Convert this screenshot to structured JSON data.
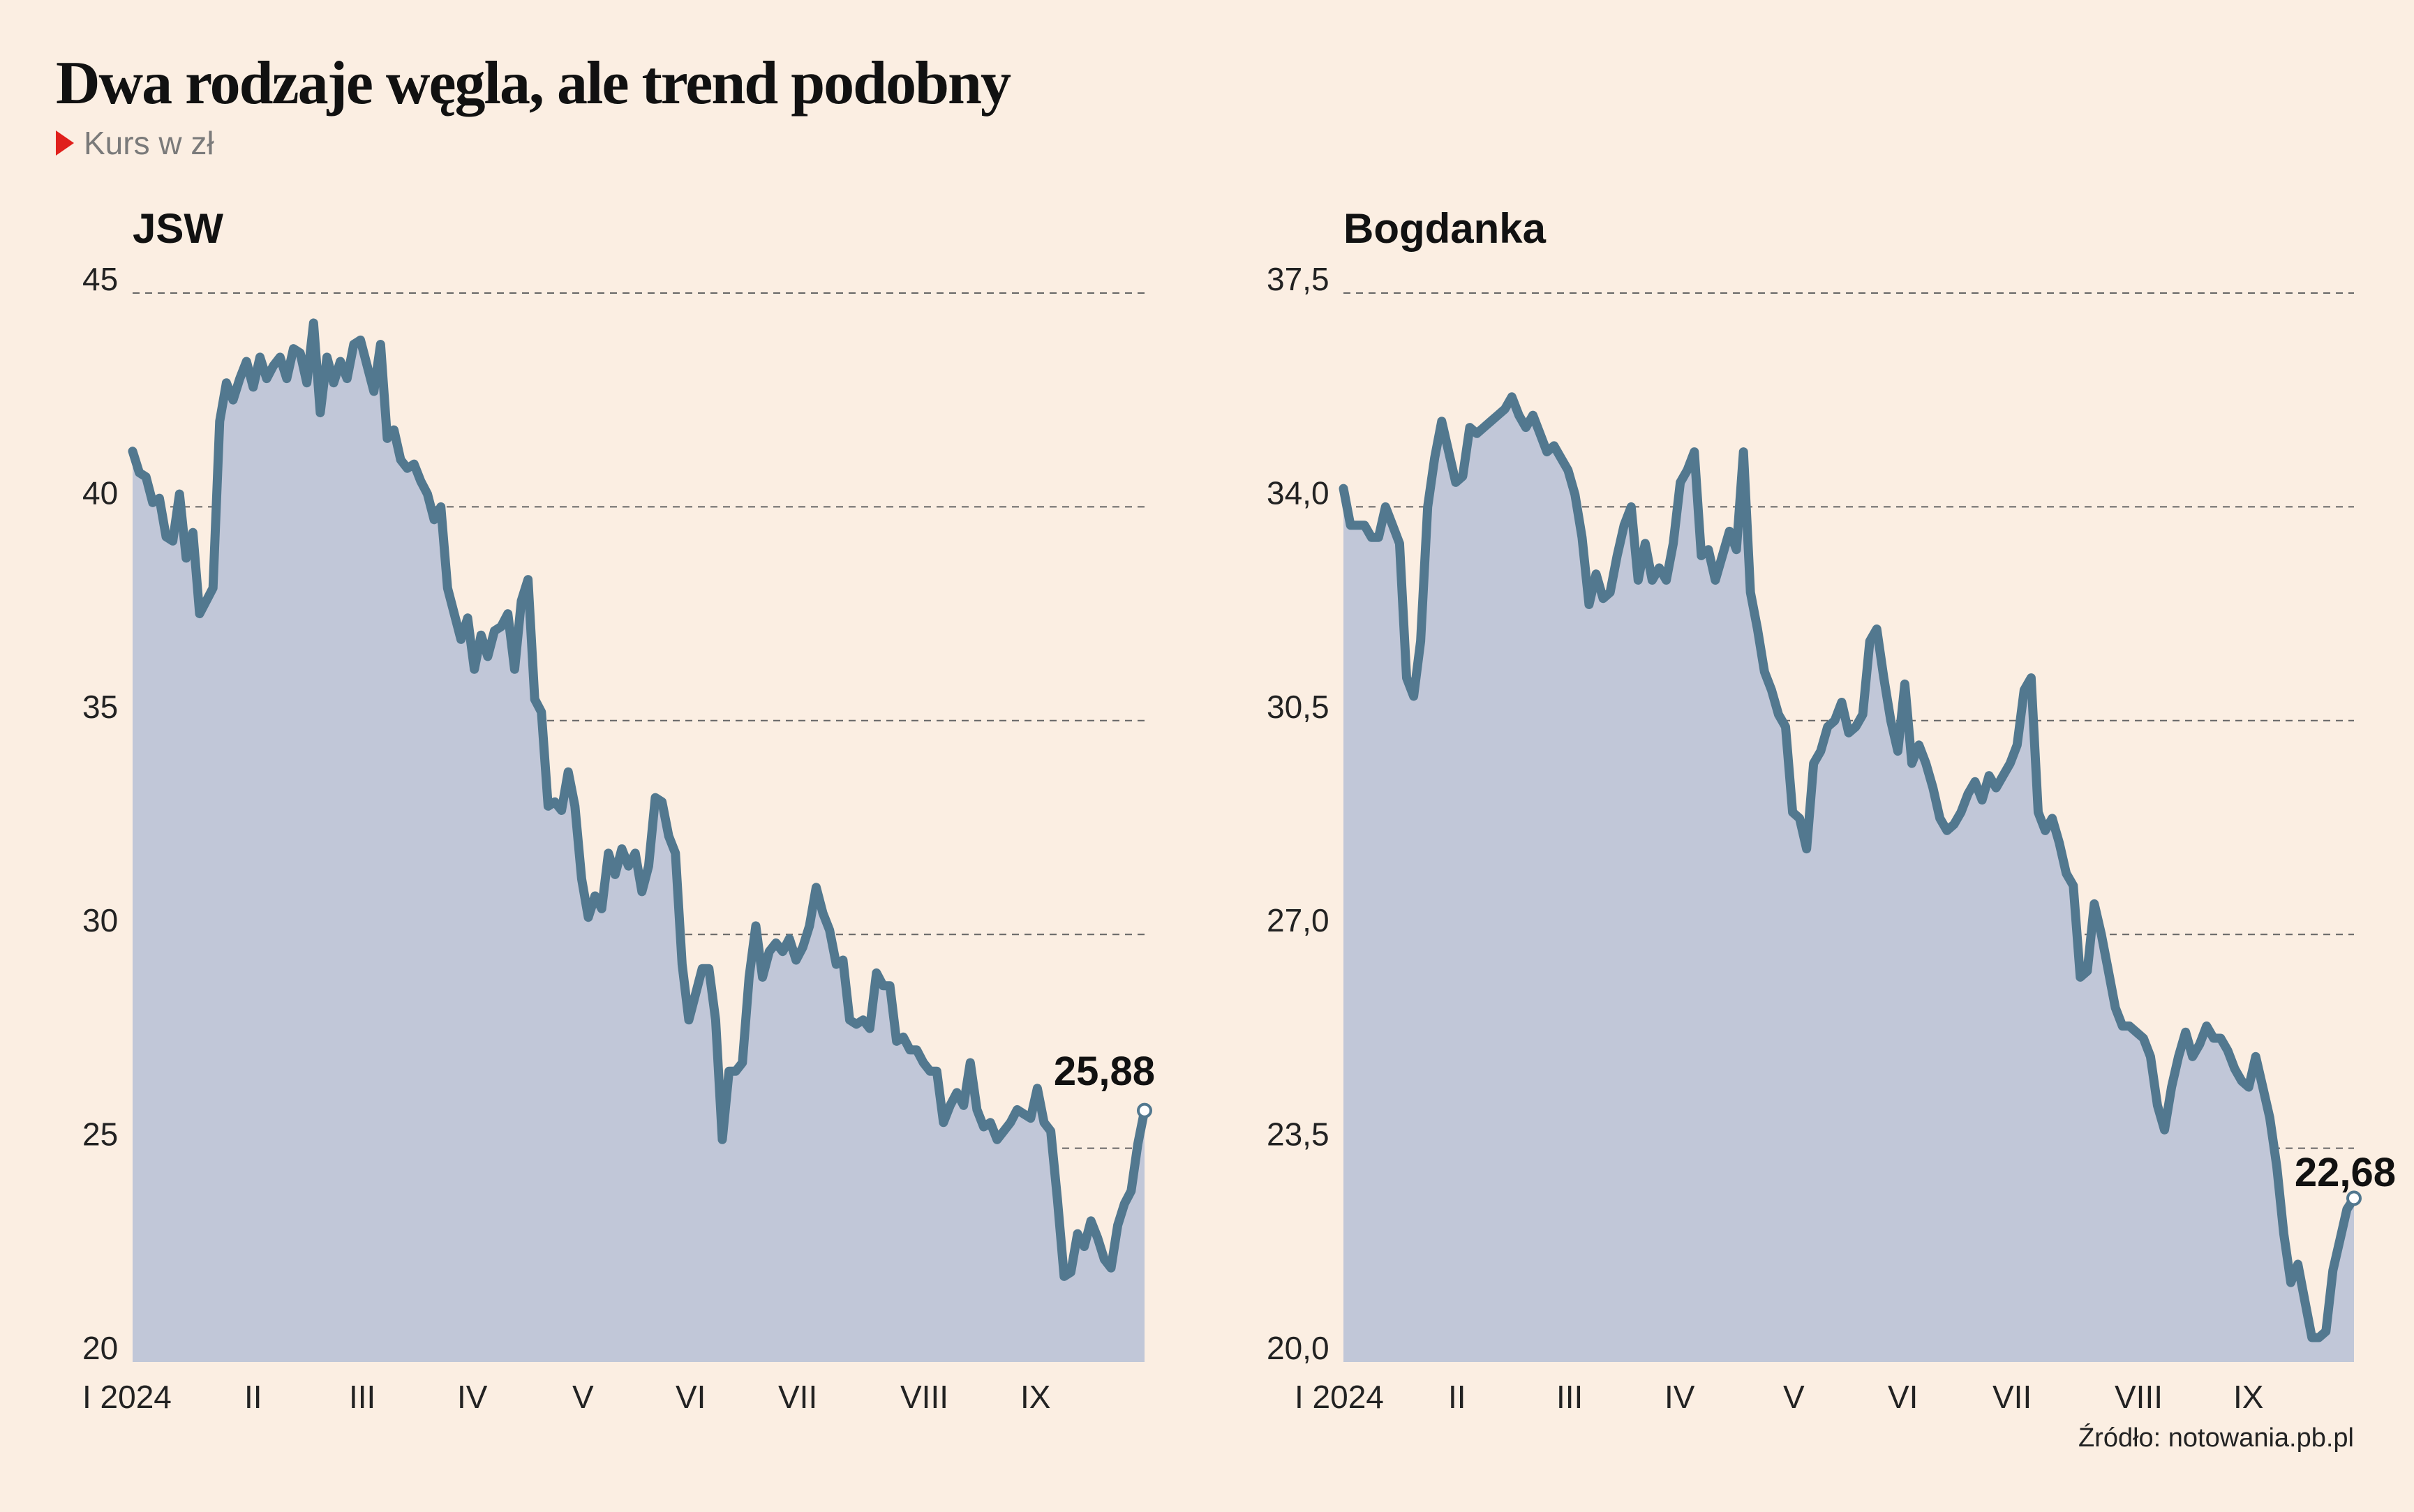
{
  "header": {
    "title": "Dwa rodzaje węgla, ale trend podobny",
    "subtitle": "Kurs w zł"
  },
  "source": "Źródło: notowania.pb.pl",
  "colors": {
    "background": "#fbeee2",
    "line": "#52788f",
    "area": "#c1c7d8",
    "marker": "#e0201c"
  },
  "chart_data": [
    {
      "type": "area",
      "title": "JSW",
      "ylim": [
        20,
        45
      ],
      "yticks": [
        "20",
        "25",
        "30",
        "35",
        "40",
        "45"
      ],
      "xticks": [
        "I 2024",
        "II",
        "III",
        "IV",
        "V",
        "VI",
        "VII",
        "VIII",
        "IX"
      ],
      "grid": true,
      "end_label": "25,88",
      "values": [
        41.3,
        40.8,
        40.7,
        40.1,
        40.2,
        39.3,
        39.2,
        40.3,
        38.8,
        39.4,
        37.5,
        37.8,
        38.1,
        42.0,
        42.9,
        42.5,
        43.0,
        43.4,
        42.8,
        43.5,
        43.0,
        43.3,
        43.5,
        43.0,
        43.7,
        43.6,
        42.9,
        44.3,
        42.2,
        43.5,
        42.9,
        43.4,
        43.0,
        43.8,
        43.9,
        43.3,
        42.7,
        43.8,
        41.6,
        41.8,
        41.1,
        40.9,
        41.0,
        40.6,
        40.3,
        39.7,
        40.0,
        38.1,
        37.5,
        36.9,
        37.4,
        36.2,
        37.0,
        36.5,
        37.1,
        37.2,
        37.5,
        36.2,
        37.8,
        38.3,
        35.5,
        35.2,
        33.0,
        33.1,
        32.9,
        33.8,
        33.0,
        31.3,
        30.4,
        30.9,
        30.6,
        31.9,
        31.4,
        32.0,
        31.6,
        31.9,
        31.0,
        31.6,
        33.2,
        33.1,
        32.3,
        31.9,
        29.3,
        28.0,
        28.6,
        29.2,
        29.2,
        28.0,
        25.2,
        26.8,
        26.8,
        27.0,
        29.0,
        30.2,
        29.0,
        29.6,
        29.8,
        29.6,
        29.9,
        29.4,
        29.7,
        30.2,
        31.1,
        30.5,
        30.1,
        29.3,
        29.4,
        28.0,
        27.9,
        28.0,
        27.8,
        29.1,
        28.8,
        28.8,
        27.5,
        27.6,
        27.3,
        27.3,
        27.0,
        26.8,
        26.8,
        25.6,
        26.0,
        26.3,
        26.0,
        27.0,
        25.9,
        25.5,
        25.6,
        25.2,
        25.4,
        25.6,
        25.9,
        25.8,
        25.7,
        26.4,
        25.6,
        25.4,
        23.8,
        22.0,
        22.1,
        23.0,
        22.7,
        23.3,
        22.9,
        22.4,
        22.2,
        23.2,
        23.7,
        24.0,
        25.1,
        25.88
      ]
    },
    {
      "type": "area",
      "title": "Bogdanka",
      "ylim": [
        20.0,
        37.5
      ],
      "yticks": [
        "20,0",
        "23,5",
        "27,0",
        "30,5",
        "34,0",
        "37,5"
      ],
      "xticks": [
        "I 2024",
        "II",
        "III",
        "IV",
        "V",
        "VI",
        "VII",
        "VIII",
        "IX"
      ],
      "grid": true,
      "end_label": "22,68",
      "values": [
        34.3,
        33.7,
        33.7,
        33.7,
        33.5,
        33.5,
        34.0,
        33.7,
        33.4,
        31.2,
        30.9,
        31.8,
        34.0,
        34.8,
        35.4,
        34.9,
        34.4,
        34.5,
        35.3,
        35.2,
        35.3,
        35.4,
        35.5,
        35.6,
        35.8,
        35.5,
        35.3,
        35.5,
        35.2,
        34.9,
        35.0,
        34.8,
        34.6,
        34.2,
        33.5,
        32.4,
        32.9,
        32.5,
        32.6,
        33.2,
        33.7,
        34.0,
        32.8,
        33.4,
        32.8,
        33.0,
        32.8,
        33.4,
        34.4,
        34.6,
        34.9,
        33.2,
        33.3,
        32.8,
        33.2,
        33.6,
        33.3,
        34.9,
        32.6,
        32.0,
        31.3,
        31.0,
        30.6,
        30.4,
        29.0,
        28.9,
        28.4,
        29.8,
        30.0,
        30.4,
        30.5,
        30.8,
        30.3,
        30.4,
        30.6,
        31.8,
        32.0,
        31.2,
        30.5,
        30.0,
        31.1,
        29.8,
        30.1,
        29.8,
        29.4,
        28.9,
        28.7,
        28.8,
        29.0,
        29.3,
        29.5,
        29.2,
        29.6,
        29.4,
        29.6,
        29.8,
        30.1,
        31.0,
        31.2,
        29.0,
        28.7,
        28.9,
        28.5,
        28.0,
        27.8,
        26.3,
        26.4,
        27.5,
        27.0,
        26.4,
        25.8,
        25.5,
        25.5,
        25.4,
        25.3,
        25.0,
        24.2,
        23.8,
        24.5,
        25.0,
        25.4,
        25.0,
        25.2,
        25.5,
        25.3,
        25.3,
        25.1,
        24.8,
        24.6,
        24.5,
        25.0,
        24.5,
        24.0,
        23.2,
        22.1,
        21.3,
        21.6,
        21.0,
        20.4,
        20.4,
        20.5,
        21.5,
        22.0,
        22.5,
        22.68
      ]
    }
  ]
}
